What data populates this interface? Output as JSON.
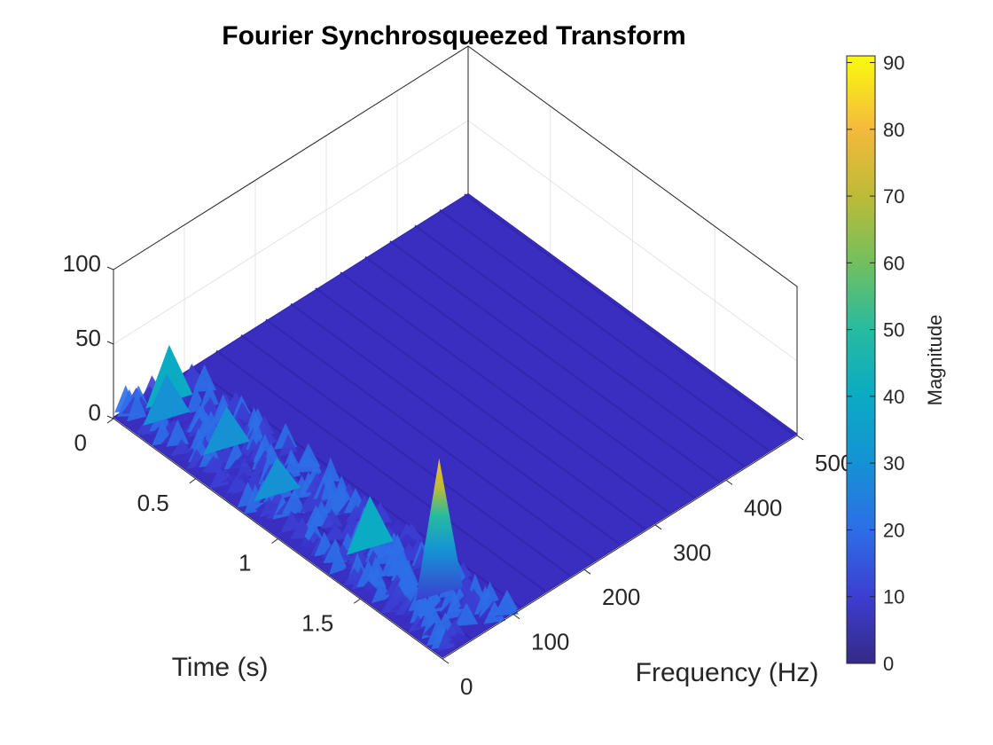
{
  "chart_data": {
    "type": "surface",
    "title": "Fourier Synchrosqueezed Transform",
    "xlabel": "Time (s)",
    "ylabel": "Frequency (Hz)",
    "zlabel": "",
    "xlim": [
      0,
      2
    ],
    "ylim": [
      0,
      500
    ],
    "zlim": [
      0,
      100
    ],
    "x_ticks": [
      "0",
      "0.5",
      "1",
      "1.5"
    ],
    "y_ticks": [
      "0",
      "100",
      "200",
      "300",
      "400",
      "500"
    ],
    "z_ticks": [
      "0",
      "50",
      "100"
    ],
    "colormap": "parula",
    "colorbar": {
      "label": "Magnitude",
      "limits": [
        0,
        91
      ],
      "ticks": [
        "0",
        "10",
        "20",
        "30",
        "40",
        "50",
        "60",
        "70",
        "80",
        "90"
      ]
    },
    "grid": true,
    "peaks": [
      {
        "time": 0.08,
        "frequency": 60,
        "magnitude": 38
      },
      {
        "time": 0.15,
        "frequency": 40,
        "magnitude": 30
      },
      {
        "time": 0.45,
        "frequency": 55,
        "magnitude": 28
      },
      {
        "time": 0.8,
        "frequency": 45,
        "magnitude": 25
      },
      {
        "time": 1.3,
        "frequency": 60,
        "magnitude": 35
      },
      {
        "time": 1.7,
        "frequency": 65,
        "magnitude": 91
      }
    ],
    "colors": {
      "background_surface": "#3a2ec0",
      "low": "#352a87",
      "high": "#f9fb0e"
    }
  }
}
